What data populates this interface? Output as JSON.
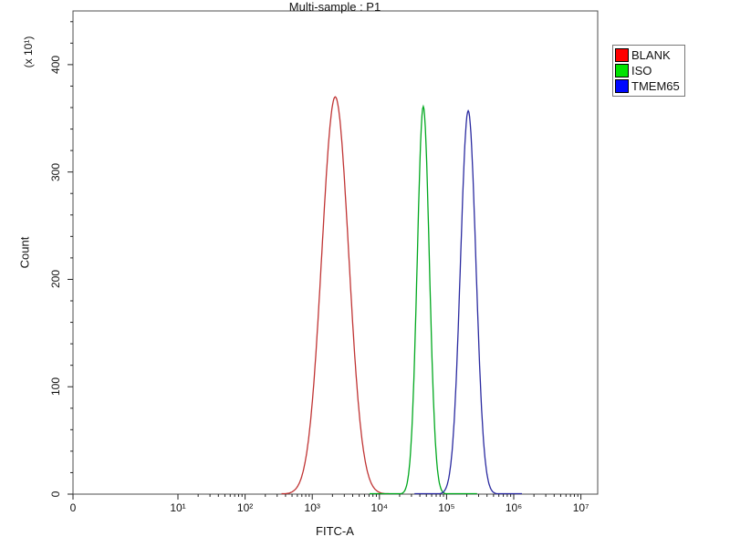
{
  "chart_data": {
    "type": "line",
    "subtype": "flow-cytometry-histogram",
    "title": "Multi-sample : P1",
    "xlabel": "FITC-A",
    "ylabel": "Count",
    "y_scale_label": "(x 10¹)",
    "legend_position": "top-right",
    "grid": false,
    "x_axis": {
      "scale": "log",
      "tick_labels": [
        "0",
        "10¹",
        "10²",
        "10³",
        "10⁴",
        "10⁵",
        "10⁶",
        "10⁷"
      ],
      "tick_logs": [
        null,
        1,
        2,
        3,
        4,
        5,
        6,
        7
      ]
    },
    "y_axis": {
      "ticks": [
        0,
        100,
        200,
        300,
        400
      ],
      "minor_step": 20,
      "ylim": [
        0,
        450
      ]
    },
    "series": [
      {
        "name": "BLANK",
        "legend_color": "#ff0000",
        "line_color": "#c03434",
        "peak_center": 2200,
        "peak_height": 370,
        "sigma_decades": 0.2
      },
      {
        "name": "ISO",
        "legend_color": "#00e400",
        "line_color": "#00a81e",
        "peak_center": 45000,
        "peak_height": 361,
        "sigma_decades": 0.09
      },
      {
        "name": "TMEM65",
        "legend_color": "#0008ff",
        "line_color": "#2a2aa0",
        "peak_center": 210000,
        "peak_height": 357,
        "sigma_decades": 0.115
      }
    ]
  }
}
